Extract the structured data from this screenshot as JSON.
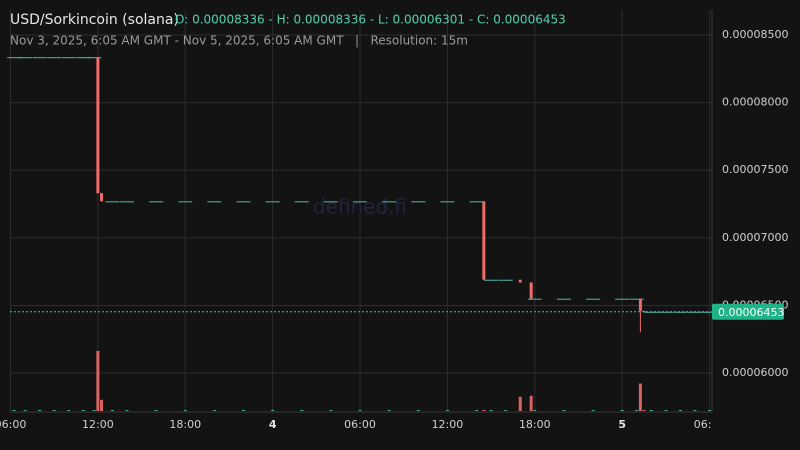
{
  "chart_data": {
    "type": "candlestick",
    "title": "USD/Sorkincoin (solana)",
    "legend": "O: 0.00008336 - H: 0.00008336 - L: 0.00006301 - C: 0.00006453",
    "subtitle": "Nov 3, 2025, 6:05 AM GMT - Nov 5, 2025, 6:05 AM GMT   |   Resolution: 15m",
    "watermark": "defined.fi",
    "up_color": "#3fbf9f",
    "down_color": "#f06b6b",
    "x": [
      "2025-11-03T06:15",
      "2025-11-03T07:00",
      "2025-11-03T08:00",
      "2025-11-03T09:00",
      "2025-11-03T10:00",
      "2025-11-03T11:00",
      "2025-11-03T11:45",
      "2025-11-03T12:00",
      "2025-11-03T12:15",
      "2025-11-03T13:00",
      "2025-11-03T14:00",
      "2025-11-03T16:00",
      "2025-11-03T18:00",
      "2025-11-03T20:00",
      "2025-11-03T22:00",
      "2025-11-04T00:00",
      "2025-11-04T02:00",
      "2025-11-04T04:00",
      "2025-11-04T06:00",
      "2025-11-04T08:00",
      "2025-11-04T10:00",
      "2025-11-04T12:00",
      "2025-11-04T14:00",
      "2025-11-04T14:30",
      "2025-11-04T15:00",
      "2025-11-04T16:00",
      "2025-11-04T17:00",
      "2025-11-04T17:45",
      "2025-11-04T18:00",
      "2025-11-04T20:00",
      "2025-11-04T22:00",
      "2025-11-05T00:00",
      "2025-11-05T01:00",
      "2025-11-05T01:15",
      "2025-11-05T01:30",
      "2025-11-05T02:00",
      "2025-11-05T03:00",
      "2025-11-05T04:00",
      "2025-11-05T05:00",
      "2025-11-05T06:00"
    ],
    "open": [
      8.336e-05,
      8.336e-05,
      8.336e-05,
      8.336e-05,
      8.336e-05,
      8.336e-05,
      8.336e-05,
      8.336e-05,
      7.33e-05,
      7.27e-05,
      7.27e-05,
      7.27e-05,
      7.27e-05,
      7.27e-05,
      7.27e-05,
      7.27e-05,
      7.27e-05,
      7.27e-05,
      7.27e-05,
      7.27e-05,
      7.27e-05,
      7.27e-05,
      7.27e-05,
      7.27e-05,
      6.69e-05,
      6.69e-05,
      6.69e-05,
      6.67e-05,
      6.55e-05,
      6.55e-05,
      6.55e-05,
      6.55e-05,
      6.55e-05,
      6.55e-05,
      6.46e-05,
      6.453e-05,
      6.453e-05,
      6.453e-05,
      6.453e-05,
      6.453e-05
    ],
    "high": [
      8.336e-05,
      8.336e-05,
      8.336e-05,
      8.336e-05,
      8.336e-05,
      8.336e-05,
      8.336e-05,
      8.336e-05,
      7.33e-05,
      7.27e-05,
      7.27e-05,
      7.27e-05,
      7.27e-05,
      7.27e-05,
      7.27e-05,
      7.27e-05,
      7.27e-05,
      7.27e-05,
      7.27e-05,
      7.27e-05,
      7.27e-05,
      7.27e-05,
      7.27e-05,
      7.27e-05,
      6.69e-05,
      6.69e-05,
      6.69e-05,
      6.67e-05,
      6.55e-05,
      6.55e-05,
      6.55e-05,
      6.55e-05,
      6.55e-05,
      6.55e-05,
      6.46e-05,
      6.453e-05,
      6.453e-05,
      6.453e-05,
      6.453e-05,
      6.453e-05
    ],
    "low": [
      8.336e-05,
      8.336e-05,
      8.336e-05,
      8.336e-05,
      8.336e-05,
      8.336e-05,
      8.336e-05,
      7.33e-05,
      7.27e-05,
      7.27e-05,
      7.27e-05,
      7.27e-05,
      7.27e-05,
      7.27e-05,
      7.27e-05,
      7.27e-05,
      7.27e-05,
      7.27e-05,
      7.27e-05,
      7.27e-05,
      7.27e-05,
      7.27e-05,
      7.27e-05,
      6.69e-05,
      6.69e-05,
      6.69e-05,
      6.67e-05,
      6.55e-05,
      6.55e-05,
      6.55e-05,
      6.55e-05,
      6.55e-05,
      6.55e-05,
      6.301e-05,
      6.453e-05,
      6.453e-05,
      6.453e-05,
      6.453e-05,
      6.453e-05,
      6.453e-05
    ],
    "close": [
      8.336e-05,
      8.336e-05,
      8.336e-05,
      8.336e-05,
      8.336e-05,
      8.336e-05,
      8.336e-05,
      7.33e-05,
      7.27e-05,
      7.27e-05,
      7.27e-05,
      7.27e-05,
      7.27e-05,
      7.27e-05,
      7.27e-05,
      7.27e-05,
      7.27e-05,
      7.27e-05,
      7.27e-05,
      7.27e-05,
      7.27e-05,
      7.27e-05,
      7.27e-05,
      6.69e-05,
      6.69e-05,
      6.69e-05,
      6.67e-05,
      6.55e-05,
      6.55e-05,
      6.55e-05,
      6.55e-05,
      6.55e-05,
      6.55e-05,
      6.46e-05,
      6.453e-05,
      6.453e-05,
      6.453e-05,
      6.453e-05,
      6.453e-05,
      6.453e-05
    ],
    "volume": [
      1,
      1,
      1,
      1,
      1,
      1,
      1,
      59,
      11,
      1,
      1,
      1,
      1,
      1,
      1,
      1,
      1,
      1,
      1,
      1,
      1,
      1,
      1,
      1,
      1,
      1,
      14,
      15,
      1,
      1,
      1,
      1,
      1,
      27,
      1,
      1,
      1,
      1,
      1,
      1
    ],
    "xlim": [
      "2025-11-03T06:00",
      "2025-11-05T06:10"
    ],
    "xticks": [
      {
        "value": "2025-11-03T06:00",
        "label": "06:00"
      },
      {
        "value": "2025-11-03T12:00",
        "label": "12:00"
      },
      {
        "value": "2025-11-03T18:00",
        "label": "18:00"
      },
      {
        "value": "2025-11-04T00:00",
        "label": "4"
      },
      {
        "value": "2025-11-04T06:00",
        "label": "06:00"
      },
      {
        "value": "2025-11-04T12:00",
        "label": "12:00"
      },
      {
        "value": "2025-11-04T18:00",
        "label": "18:00"
      },
      {
        "value": "2025-11-05T00:00",
        "label": "5"
      },
      {
        "value": "2025-11-05T06:00",
        "label": "06:00"
      }
    ],
    "ylim": [
      5.712e-05,
      8.685e-05
    ],
    "yticks": [
      {
        "value": 6e-05,
        "label": "0.00006000"
      },
      {
        "value": 6.5e-05,
        "label": "0.00006500"
      },
      {
        "value": 7e-05,
        "label": "0.00007000"
      },
      {
        "value": 7.5e-05,
        "label": "0.00007500"
      },
      {
        "value": 8e-05,
        "label": "0.00008000"
      },
      {
        "value": 8.5e-05,
        "label": "0.00008500"
      }
    ],
    "last_price": 6.453e-05,
    "grid": true
  }
}
